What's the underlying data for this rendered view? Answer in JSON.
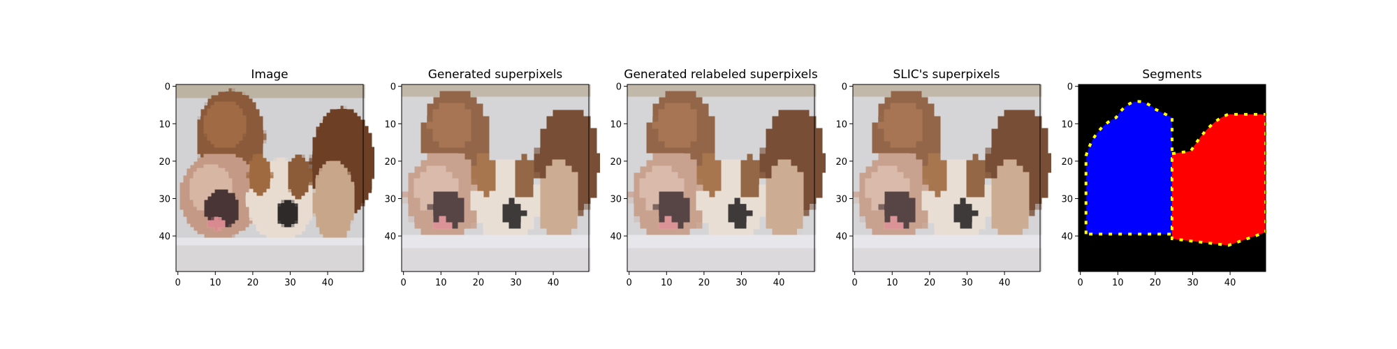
{
  "figure": {
    "background": "#ffffff"
  },
  "chart_data": [
    {
      "type": "image",
      "title": "Image",
      "content": "photograph-two-bulldogs",
      "xlim": [
        0,
        49
      ],
      "ylim": [
        49,
        0
      ],
      "xticks": [
        0,
        10,
        20,
        30,
        40
      ],
      "yticks": [
        0,
        10,
        20,
        30,
        40
      ]
    },
    {
      "type": "image",
      "title": "Generated superpixels",
      "content": "superpixel-mosaic",
      "xlim": [
        0,
        49
      ],
      "ylim": [
        49,
        0
      ],
      "xticks": [
        0,
        10,
        20,
        30,
        40
      ],
      "yticks": [
        0,
        10,
        20,
        30,
        40
      ]
    },
    {
      "type": "image",
      "title": "Generated relabeled superpixels",
      "content": "relabeled-superpixel-mosaic",
      "xlim": [
        0,
        49
      ],
      "ylim": [
        49,
        0
      ],
      "xticks": [
        0,
        10,
        20,
        30,
        40
      ],
      "yticks": [
        0,
        10,
        20,
        30,
        40
      ]
    },
    {
      "type": "image",
      "title": "SLIC's superpixels",
      "content": "slic-superpixel-mosaic",
      "xlim": [
        0,
        49
      ],
      "ylim": [
        49,
        0
      ],
      "xticks": [
        0,
        10,
        20,
        30,
        40
      ],
      "yticks": [
        0,
        10,
        20,
        30,
        40
      ]
    },
    {
      "type": "segmentation",
      "title": "Segments",
      "content": "segmentation-mask",
      "background_color": "#000000",
      "boundary_color": "#ffff00",
      "segments": [
        {
          "color": "#0000ff",
          "rows": [
            2,
            39
          ],
          "cols": [
            2,
            24
          ]
        },
        {
          "color": "#ff0000",
          "rows": [
            8,
            42
          ],
          "cols": [
            25,
            49
          ]
        }
      ],
      "xlim": [
        0,
        49
      ],
      "ylim": [
        49,
        0
      ],
      "xticks": [
        0,
        10,
        20,
        30,
        40
      ],
      "yticks": [
        0,
        10,
        20,
        30,
        40
      ]
    }
  ]
}
